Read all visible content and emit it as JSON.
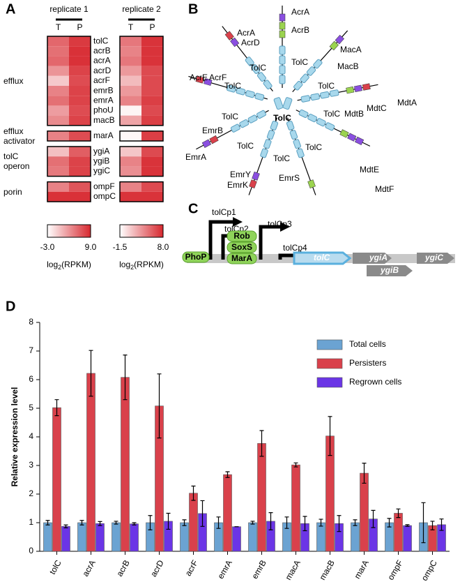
{
  "panel_labels": [
    "A",
    "B",
    "C",
    "D"
  ],
  "panel_a": {
    "groups": [
      {
        "name": "efflux",
        "genes": [
          "tolC",
          "acrB",
          "acrA",
          "acrD",
          "acrF",
          "emrB",
          "emrA",
          "phoU",
          "macB"
        ]
      },
      {
        "name": "efflux activator",
        "genes": [
          "marA"
        ]
      },
      {
        "name": "tolC operon",
        "genes": [
          "ygiA",
          "ygiB",
          "ygiC"
        ]
      },
      {
        "name": "porin",
        "genes": [
          "ompF",
          "ompC"
        ]
      }
    ]
  },
  "panel_b": {
    "center": "TolC",
    "complexes": [
      {
        "components": [
          "AcrA",
          "AcrB",
          "TolC"
        ]
      },
      {
        "components": [
          "AcrA",
          "AcrD",
          "TolC"
        ]
      },
      {
        "components": [
          "MacA",
          "MacB",
          "TolC"
        ]
      },
      {
        "components": [
          "AcrE",
          "AcrF",
          "TolC"
        ]
      },
      {
        "components": [
          "TolC",
          "MdtB",
          "MdtC",
          "MdtA"
        ]
      },
      {
        "components": [
          "TolC",
          "EmrB",
          "EmrA"
        ]
      },
      {
        "components": [
          "TolC",
          "EmrY",
          "EmrK"
        ]
      },
      {
        "components": [
          "TolC",
          "EmrS"
        ]
      },
      {
        "components": [
          "TolC",
          "MdtE",
          "MdtF"
        ]
      }
    ]
  },
  "panel_c": {
    "promoters": [
      "tolCp1",
      "tolCp2",
      "tolCp3",
      "tolCp4"
    ],
    "regulators": [
      "PhoP",
      "Rob",
      "SoxS",
      "MarA"
    ],
    "genes": [
      "tolC",
      "ygiA",
      "ygiB",
      "ygiC"
    ]
  },
  "chart_data": [
    {
      "type": "heatmap",
      "title": "replicate 1",
      "columns": [
        "T",
        "P"
      ],
      "values": [
        [
          [
            5.5,
            8
          ],
          [
            5,
            8.5
          ],
          [
            5.5,
            8.5
          ],
          [
            3,
            7.5
          ],
          [
            0,
            7
          ],
          [
            4,
            7.5
          ],
          [
            5,
            7.5
          ],
          [
            2.5,
            7
          ],
          [
            3.5,
            7.5
          ]
        ],
        [
          [
            4,
            7
          ]
        ],
        [
          [
            0.5,
            6
          ],
          [
            5,
            7.5
          ],
          [
            4.5,
            7.5
          ]
        ],
        [
          [
            4,
            6.5
          ],
          [
            8.5,
            8.5
          ]
        ]
      ],
      "cmap": [
        "#ffffff",
        "#d7282f"
      ],
      "clim": [
        -3,
        9
      ],
      "cticks": [
        {
          "value": -3,
          "label": "-3.0"
        },
        {
          "value": 9,
          "label": "9.0"
        }
      ],
      "colorbar_label": {
        "text": "log",
        "subscript": "2",
        "suffix": "(RPKM)"
      }
    },
    {
      "type": "heatmap",
      "title": "replicate 2",
      "columns": [
        "T",
        "P"
      ],
      "values": [
        [
          [
            4.5,
            7.5
          ],
          [
            4,
            7.5
          ],
          [
            4.5,
            7.5
          ],
          [
            3,
            6.5
          ],
          [
            1.5,
            6.5
          ],
          [
            3,
            6.5
          ],
          [
            4,
            7
          ],
          [
            -1,
            6.5
          ],
          [
            2.5,
            7
          ]
        ],
        [
          [
            -1.2,
            7
          ]
        ],
        [
          [
            1,
            6.5
          ],
          [
            4,
            7.5
          ],
          [
            3.5,
            7.5
          ]
        ],
        [
          [
            4,
            6.5
          ],
          [
            7.5,
            7.5
          ]
        ]
      ],
      "cmap": [
        "#ffffff",
        "#d7282f"
      ],
      "clim": [
        -1.5,
        8
      ],
      "cticks": [
        -1.5,
        {
          "value": 8,
          "label": "8.0"
        }
      ],
      "colorbar_label": {
        "text": "log",
        "subscript": "2",
        "suffix": "(RPKM)"
      }
    },
    {
      "type": "bar",
      "ylabel": "Relative expression level",
      "categories": [
        "tolC",
        "acrA",
        "acrB",
        "acrD",
        "acrF",
        "emrA",
        "emrB",
        "macA",
        "macB",
        "marA",
        "ompF",
        "ompC"
      ],
      "series": [
        {
          "name": "Total cells",
          "color": "#6ba3d2",
          "values": [
            1.0,
            1.0,
            1.0,
            1.0,
            1.0,
            1.0,
            1.0,
            1.0,
            1.0,
            1.0,
            1.0,
            1.0
          ],
          "errors": [
            0.08,
            0.08,
            0.05,
            0.25,
            0.1,
            0.2,
            0.05,
            0.2,
            0.12,
            0.1,
            0.15,
            0.7
          ]
        },
        {
          "name": "Persisters",
          "color": "#d9414b",
          "values": [
            5.02,
            6.22,
            6.08,
            5.08,
            2.03,
            2.68,
            3.77,
            3.02,
            4.03,
            2.73,
            1.33,
            0.9
          ],
          "errors": [
            0.28,
            0.8,
            0.78,
            1.12,
            0.25,
            0.1,
            0.45,
            0.07,
            0.68,
            0.35,
            0.15,
            0.15
          ]
        },
        {
          "name": "Regrown cells",
          "color": "#6b35e6",
          "values": [
            0.87,
            0.97,
            0.96,
            1.05,
            1.32,
            0.86,
            1.05,
            0.97,
            0.97,
            1.13,
            0.9,
            0.93
          ],
          "errors": [
            0.05,
            0.07,
            0.04,
            0.28,
            0.45,
            0,
            0.3,
            0.25,
            0.28,
            0.3,
            0.03,
            0.2
          ]
        }
      ],
      "ylim": [
        0,
        8
      ],
      "yticks": [
        0,
        1,
        2,
        3,
        4,
        5,
        6,
        7,
        8
      ],
      "legend": "upper right"
    }
  ]
}
